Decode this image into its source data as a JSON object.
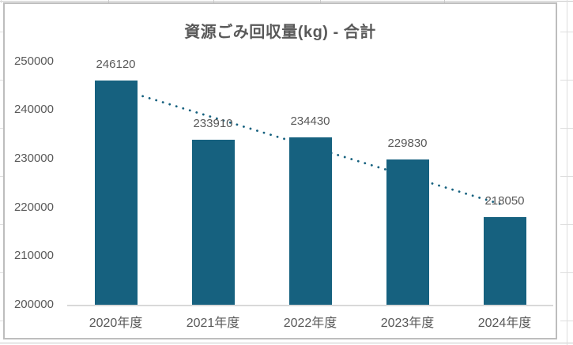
{
  "chart_data": {
    "type": "bar",
    "title": "資源ごみ回収量(kg) - 合計",
    "categories": [
      "2020年度",
      "2021年度",
      "2022年度",
      "2023年度",
      "2024年度"
    ],
    "values": [
      246120,
      233910,
      234430,
      229830,
      218050
    ],
    "data_labels": [
      "246120",
      "233910",
      "234430",
      "229830",
      "218050"
    ],
    "ylim": [
      200000,
      250000
    ],
    "yticks": [
      250000,
      240000,
      230000,
      220000,
      210000,
      200000
    ],
    "xlabel": "",
    "ylabel": "",
    "grid": false,
    "legend": "none",
    "trendline": {
      "type": "linear",
      "style": "dotted",
      "endpoints_values": [
        244512,
        220424
      ]
    }
  },
  "colors": {
    "bar": "#16617F",
    "trend": "#16617F",
    "text": "#595959",
    "axis_line": "#d9d9d9",
    "frame_border": "#bdbdbd"
  }
}
